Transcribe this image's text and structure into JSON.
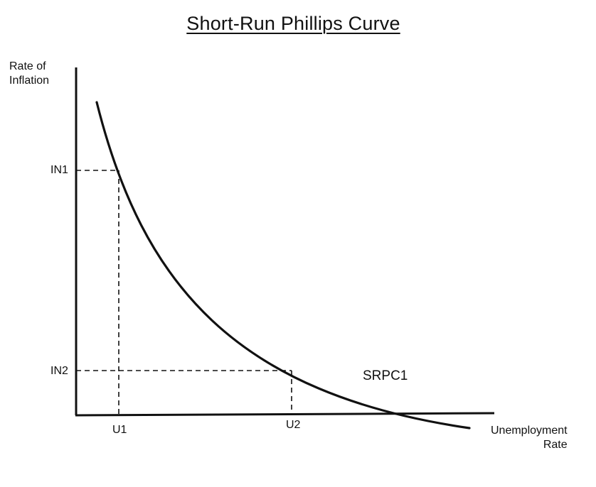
{
  "title": "Short-Run Phillips Curve",
  "y_axis": {
    "label_line1": "Rate of",
    "label_line2": "Inflation"
  },
  "x_axis": {
    "label_line1": "Unemployment",
    "label_line2": "Rate"
  },
  "y_ticks": {
    "in1": "IN1",
    "in2": "IN2"
  },
  "x_ticks": {
    "u1": "U1",
    "u2": "U2"
  },
  "curve": {
    "label": "SRPC1"
  },
  "colors": {
    "line": "#111111",
    "background": "#ffffff"
  }
}
